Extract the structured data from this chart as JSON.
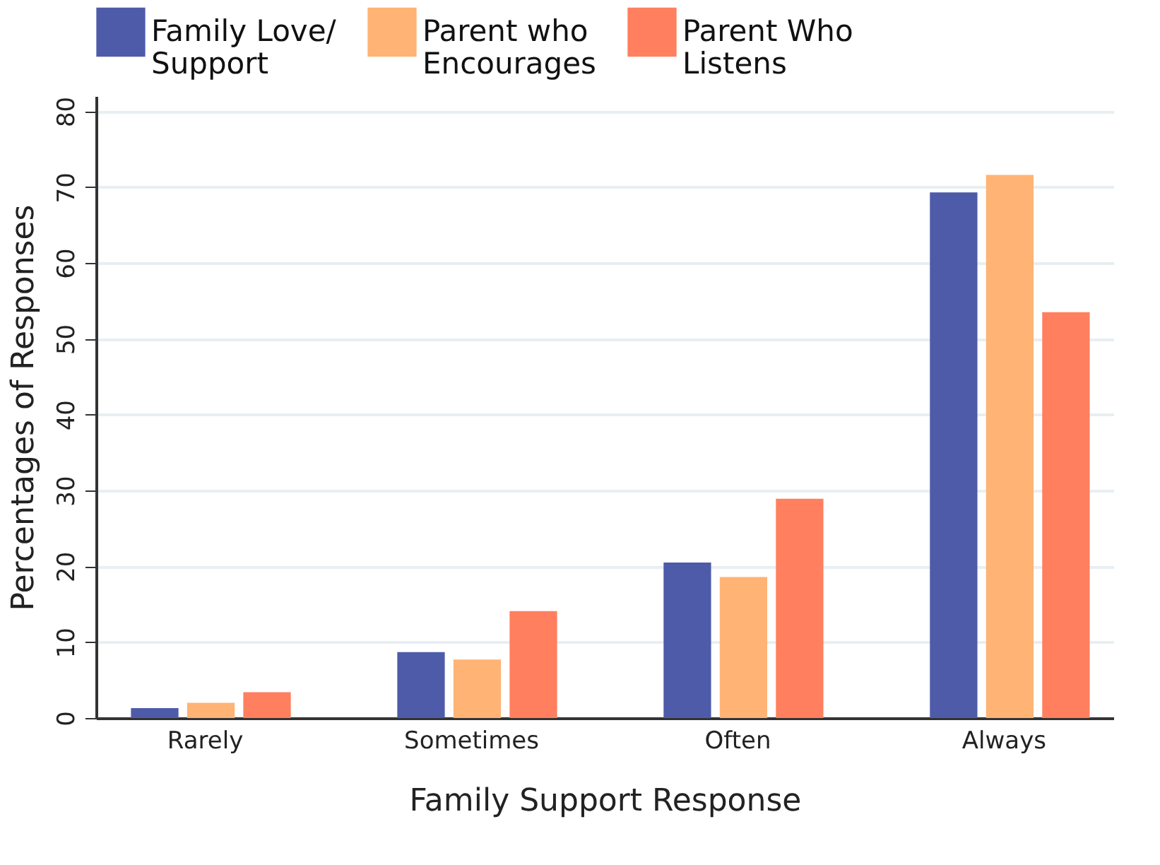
{
  "chart_data": {
    "type": "bar",
    "xlabel": "Family Support Response",
    "ylabel": "Percentages of Responses",
    "categories": [
      "Rarely",
      "Sometimes",
      "Often",
      "Always"
    ],
    "series": [
      {
        "name": "Family Love/ Support",
        "color": "#4e5ba8",
        "values": [
          1.3,
          8.7,
          20.5,
          69.3
        ]
      },
      {
        "name": "Parent who Encourages",
        "color": "#ffb374",
        "values": [
          2.0,
          7.7,
          18.6,
          71.6
        ]
      },
      {
        "name": "Parent Who Listens",
        "color": "#ff7f5e",
        "values": [
          3.4,
          14.1,
          28.9,
          53.5
        ]
      }
    ],
    "ylim": [
      0,
      82
    ],
    "yticks": [
      0,
      10,
      20,
      30,
      40,
      50,
      60,
      70,
      80
    ],
    "grid": "y",
    "legend": "top"
  }
}
